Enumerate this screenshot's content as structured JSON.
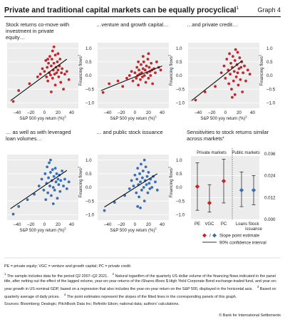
{
  "header": {
    "title": "Private and traditional capital markets can be equally procyclical",
    "title_sup": "1",
    "graph_label": "Graph 4"
  },
  "chart_data": [
    {
      "type": "scatter",
      "title": "Stock returns co-move with investment in private equity…",
      "xlabel": "S&P 500 yoy return (%)",
      "xlabel_sup": "3",
      "ylabel": "Financing flows",
      "ylabel_sup": "2",
      "xlim": [
        -55,
        50
      ],
      "ylim": [
        -1.2,
        1.2
      ],
      "xticks": [
        "–40",
        "–20",
        "0",
        "20",
        "40"
      ],
      "yticks": [
        "1.0",
        "0.5",
        "0.0",
        "–0.5",
        "–1.0"
      ],
      "color": "#c0282d",
      "points": [
        [
          -46,
          -0.95
        ],
        [
          -38,
          -0.55
        ],
        [
          -22,
          -0.3
        ],
        [
          -10,
          -0.05
        ],
        [
          -6,
          0.05
        ],
        [
          -3,
          0.25
        ],
        [
          0,
          0.15
        ],
        [
          2,
          0.55
        ],
        [
          3,
          -0.05
        ],
        [
          4,
          0.3
        ],
        [
          5,
          -0.2
        ],
        [
          6,
          0.45
        ],
        [
          7,
          0.1
        ],
        [
          8,
          0.7
        ],
        [
          9,
          0.02
        ],
        [
          10,
          0.35
        ],
        [
          11,
          0.6
        ],
        [
          12,
          0.9
        ],
        [
          12,
          -0.1
        ],
        [
          13,
          0.2
        ],
        [
          14,
          0.45
        ],
        [
          15,
          0.05
        ],
        [
          16,
          0.75
        ],
        [
          16,
          -0.35
        ],
        [
          17,
          0.3
        ],
        [
          18,
          0.1
        ],
        [
          19,
          0.5
        ],
        [
          20,
          0.2
        ],
        [
          21,
          -0.05
        ],
        [
          22,
          0.35
        ],
        [
          23,
          0.6
        ],
        [
          24,
          -0.25
        ],
        [
          25,
          0.1
        ],
        [
          26,
          0.25
        ],
        [
          28,
          -0.5
        ],
        [
          30,
          0.05
        ],
        [
          33,
          0.15
        ],
        [
          36,
          -0.15
        ],
        [
          10,
          -0.6
        ],
        [
          14,
          1.05
        ],
        [
          20,
          0.8
        ],
        [
          5,
          0.6
        ]
      ],
      "fit": [
        [
          -50,
          -0.92
        ],
        [
          33,
          0.6
        ]
      ]
    },
    {
      "type": "scatter",
      "title": "…venture and growth capital…",
      "xlabel": "S&P 500 yoy return (%)",
      "xlabel_sup": "3",
      "ylabel": "Financing flows",
      "ylabel_sup": "2",
      "xlim": [
        -55,
        50
      ],
      "ylim": [
        -1.2,
        1.2
      ],
      "xticks": [
        "–40",
        "–20",
        "0",
        "20",
        "40"
      ],
      "yticks": [
        "1.0",
        "0.5",
        "0.0",
        "–0.5",
        "–1.0"
      ],
      "color": "#c0282d",
      "points": [
        [
          -47,
          -0.62
        ],
        [
          -38,
          -0.3
        ],
        [
          -25,
          -0.2
        ],
        [
          -18,
          -0.4
        ],
        [
          -12,
          -0.1
        ],
        [
          -8,
          0.0
        ],
        [
          -5,
          0.15
        ],
        [
          -3,
          -0.2
        ],
        [
          0,
          0.1
        ],
        [
          2,
          -0.1
        ],
        [
          3,
          0.3
        ],
        [
          4,
          0.0
        ],
        [
          5,
          -0.35
        ],
        [
          6,
          0.2
        ],
        [
          7,
          0.05
        ],
        [
          8,
          -0.15
        ],
        [
          9,
          0.4
        ],
        [
          10,
          0.1
        ],
        [
          11,
          -0.05
        ],
        [
          12,
          0.25
        ],
        [
          13,
          0.5
        ],
        [
          14,
          0.0
        ],
        [
          15,
          0.2
        ],
        [
          16,
          -0.25
        ],
        [
          17,
          0.35
        ],
        [
          18,
          0.1
        ],
        [
          19,
          0.6
        ],
        [
          20,
          -0.1
        ],
        [
          21,
          0.3
        ],
        [
          22,
          0.15
        ],
        [
          23,
          0.0
        ],
        [
          24,
          0.45
        ],
        [
          25,
          0.2
        ],
        [
          26,
          -0.3
        ],
        [
          28,
          0.25
        ],
        [
          30,
          0.1
        ],
        [
          32,
          0.5
        ],
        [
          35,
          0.3
        ],
        [
          38,
          0.2
        ],
        [
          12,
          0.7
        ],
        [
          20,
          0.8
        ],
        [
          5,
          0.5
        ]
      ],
      "fit": [
        [
          -50,
          -0.55
        ],
        [
          40,
          0.35
        ]
      ]
    },
    {
      "type": "scatter",
      "title": "…and private credit…",
      "xlabel": "S&P 500 yoy return (%)",
      "xlabel_sup": "3",
      "ylabel": "Financing flows",
      "ylabel_sup": "2",
      "xlim": [
        -55,
        50
      ],
      "ylim": [
        -1.2,
        1.2
      ],
      "xticks": [
        "–40",
        "–20",
        "0",
        "20",
        "40"
      ],
      "yticks": [
        "1.0",
        "0.5",
        "0.0",
        "–0.5",
        "–1.0"
      ],
      "color": "#c0282d",
      "points": [
        [
          -44,
          -0.9
        ],
        [
          -30,
          -0.6
        ],
        [
          -15,
          -0.4
        ],
        [
          -6,
          0.1
        ],
        [
          -2,
          0.35
        ],
        [
          0,
          -0.1
        ],
        [
          2,
          0.6
        ],
        [
          4,
          0.2
        ],
        [
          5,
          -0.3
        ],
        [
          6,
          0.8
        ],
        [
          7,
          0.05
        ],
        [
          8,
          0.45
        ],
        [
          9,
          -0.5
        ],
        [
          10,
          0.3
        ],
        [
          11,
          0.7
        ],
        [
          12,
          -0.2
        ],
        [
          13,
          0.15
        ],
        [
          14,
          0.55
        ],
        [
          15,
          0.95
        ],
        [
          16,
          -0.05
        ],
        [
          17,
          0.4
        ],
        [
          18,
          0.1
        ],
        [
          19,
          -0.35
        ],
        [
          20,
          0.25
        ],
        [
          21,
          0.65
        ],
        [
          22,
          -0.15
        ],
        [
          23,
          0.3
        ],
        [
          24,
          0.5
        ],
        [
          25,
          -0.6
        ],
        [
          26,
          0.1
        ],
        [
          28,
          0.35
        ],
        [
          30,
          -0.2
        ],
        [
          33,
          0.2
        ],
        [
          36,
          0.05
        ],
        [
          10,
          -0.8
        ],
        [
          18,
          0.85
        ],
        [
          14,
          -0.7
        ]
      ],
      "fit": [
        [
          -50,
          -0.92
        ],
        [
          25,
          0.55
        ]
      ]
    },
    {
      "type": "scatter",
      "title": "… as well as with leveraged loan volumes…",
      "xlabel": "S&P 500 yoy return (%)",
      "xlabel_sup": "3",
      "ylabel": "Financing flows",
      "ylabel_sup": "2",
      "xlim": [
        -55,
        50
      ],
      "ylim": [
        -1.2,
        1.2
      ],
      "xticks": [
        "–40",
        "–20",
        "0",
        "20",
        "40"
      ],
      "yticks": [
        "1.0",
        "0.5",
        "0.0",
        "–0.5",
        "–1.0"
      ],
      "color": "#3a6fb5",
      "points": [
        [
          -46,
          -0.98
        ],
        [
          -38,
          -0.7
        ],
        [
          -25,
          -0.45
        ],
        [
          -15,
          -0.25
        ],
        [
          -8,
          0.05
        ],
        [
          -4,
          0.3
        ],
        [
          -1,
          -0.1
        ],
        [
          1,
          0.5
        ],
        [
          3,
          0.15
        ],
        [
          4,
          0.75
        ],
        [
          5,
          -0.2
        ],
        [
          6,
          0.35
        ],
        [
          7,
          0.9
        ],
        [
          8,
          0.05
        ],
        [
          9,
          0.55
        ],
        [
          10,
          -0.3
        ],
        [
          11,
          0.25
        ],
        [
          12,
          0.65
        ],
        [
          13,
          0.0
        ],
        [
          14,
          0.4
        ],
        [
          15,
          -0.1
        ],
        [
          16,
          0.7
        ],
        [
          17,
          0.2
        ],
        [
          18,
          0.5
        ],
        [
          19,
          -0.4
        ],
        [
          20,
          0.3
        ],
        [
          21,
          0.1
        ],
        [
          22,
          0.45
        ],
        [
          23,
          -0.15
        ],
        [
          24,
          0.25
        ],
        [
          26,
          0.6
        ],
        [
          28,
          0.05
        ],
        [
          30,
          0.3
        ],
        [
          33,
          -0.05
        ],
        [
          36,
          0.2
        ],
        [
          9,
          1.0
        ],
        [
          13,
          -0.6
        ],
        [
          2,
          -0.45
        ]
      ],
      "fit": [
        [
          -50,
          -0.78
        ],
        [
          33,
          0.62
        ]
      ]
    },
    {
      "type": "scatter",
      "title": "… and public stock issuance",
      "xlabel": "S&P 500 yoy return (%)",
      "xlabel_sup": "3",
      "ylabel": "Financing flows",
      "ylabel_sup": "2",
      "xlim": [
        -55,
        50
      ],
      "ylim": [
        -1.2,
        1.2
      ],
      "xticks": [
        "–40",
        "–20",
        "0",
        "20",
        "40"
      ],
      "yticks": [
        "1.0",
        "0.5",
        "0.0",
        "–0.5",
        "–1.0"
      ],
      "color": "#3a6fb5",
      "points": [
        [
          -45,
          -0.85
        ],
        [
          -30,
          -0.55
        ],
        [
          -15,
          -0.3
        ],
        [
          -8,
          -0.05
        ],
        [
          -5,
          0.25
        ],
        [
          -2,
          0.05
        ],
        [
          0,
          0.45
        ],
        [
          2,
          -0.2
        ],
        [
          3,
          0.3
        ],
        [
          4,
          0.7
        ],
        [
          5,
          0.1
        ],
        [
          6,
          -0.35
        ],
        [
          7,
          0.5
        ],
        [
          8,
          0.2
        ],
        [
          9,
          0.85
        ],
        [
          10,
          -0.1
        ],
        [
          11,
          0.35
        ],
        [
          12,
          0.6
        ],
        [
          13,
          0.0
        ],
        [
          14,
          -0.5
        ],
        [
          15,
          0.25
        ],
        [
          16,
          0.75
        ],
        [
          17,
          0.1
        ],
        [
          18,
          0.4
        ],
        [
          19,
          -0.2
        ],
        [
          20,
          0.55
        ],
        [
          21,
          0.15
        ],
        [
          22,
          -0.05
        ],
        [
          23,
          0.3
        ],
        [
          25,
          0.0
        ],
        [
          27,
          0.4
        ],
        [
          30,
          0.2
        ],
        [
          33,
          -0.1
        ],
        [
          8,
          -0.75
        ],
        [
          14,
          1.0
        ],
        [
          4,
          -0.7
        ]
      ],
      "fit": [
        [
          -45,
          -0.72
        ],
        [
          33,
          0.5
        ]
      ]
    },
    {
      "type": "interval",
      "title": "Sensitivities to stock returns similar across markets",
      "title_sup": "4",
      "group_labels": [
        "Private markets",
        "Public markets"
      ],
      "categories": [
        "PE",
        "VGC",
        "PC",
        "Loans",
        "Stock issuance"
      ],
      "category_lines": [
        [
          "PE"
        ],
        [
          "VGC"
        ],
        [
          "PC"
        ],
        [
          "Loans"
        ],
        [
          "Stock",
          "issuance"
        ]
      ],
      "estimates": [
        0.018,
        0.009,
        0.021,
        0.016,
        0.016
      ],
      "lower": [
        0.005,
        0.004,
        0.009,
        0.007,
        0.008
      ],
      "upper": [
        0.031,
        0.019,
        0.033,
        0.026,
        0.024
      ],
      "marker_colors": [
        "#c0282d",
        "#c0282d",
        "#c0282d",
        "#3a6fb5",
        "#3a6fb5"
      ],
      "ylim": [
        0.0,
        0.039
      ],
      "yticks": [
        0.0,
        0.012,
        0.024,
        0.036
      ],
      "ytick_labels": [
        "0.000",
        "0.012",
        "0.024",
        "0.036"
      ]
    }
  ],
  "legend": {
    "slope_label": "Slope point estimate",
    "slash": "/",
    "ci_label": "90% confidence interval"
  },
  "notes": {
    "abbrev": "PE = private equity; VGC = venture and growth capital; PC = private credit.",
    "footnotes": [
      {
        "n": "1",
        "text": "The sample includes data for the period Q2 2007–Q2 2021."
      },
      {
        "n": "2",
        "text": "Natural logarithm of the quarterly US dollar volume of the financing flows indicated in the panel title, after netting out the effect of the lagged volume, year-on-year returns of the iShares iBoxx $ High Yield Corporate Bond exchange-traded fund, and year-on-year growth in US nominal GDP, based on a regression that also includes the year-on-year return on the S&P 500, displayed in the horizontal axis."
      },
      {
        "n": "3",
        "text": "Based on quarterly average of daily prices."
      },
      {
        "n": "4",
        "text": "The point estimates represent the slopes of the fitted lines in the corresponding panels of this graph."
      }
    ],
    "sources": "Sources: Bloomberg; Dealogic; PitchBook Data Inc; Refinitiv Eikon; national data; authors' calculations.",
    "copyright": "© Bank for International Settlements"
  }
}
